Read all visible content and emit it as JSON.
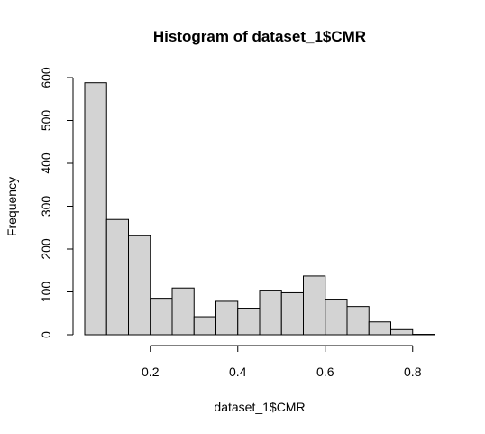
{
  "chart_data": {
    "type": "bar",
    "title": "Histogram of dataset_1$CMR",
    "xlabel": "dataset_1$CMR",
    "ylabel": "Frequency",
    "bar_color": "#d3d3d3",
    "bins": [
      {
        "from": 0.05,
        "to": 0.1,
        "count": 588
      },
      {
        "from": 0.1,
        "to": 0.15,
        "count": 269
      },
      {
        "from": 0.15,
        "to": 0.2,
        "count": 231
      },
      {
        "from": 0.2,
        "to": 0.25,
        "count": 85
      },
      {
        "from": 0.25,
        "to": 0.3,
        "count": 109
      },
      {
        "from": 0.3,
        "to": 0.35,
        "count": 42
      },
      {
        "from": 0.35,
        "to": 0.4,
        "count": 78
      },
      {
        "from": 0.4,
        "to": 0.45,
        "count": 62
      },
      {
        "from": 0.45,
        "to": 0.5,
        "count": 104
      },
      {
        "from": 0.5,
        "to": 0.55,
        "count": 98
      },
      {
        "from": 0.55,
        "to": 0.6,
        "count": 137
      },
      {
        "from": 0.6,
        "to": 0.65,
        "count": 83
      },
      {
        "from": 0.65,
        "to": 0.7,
        "count": 66
      },
      {
        "from": 0.7,
        "to": 0.75,
        "count": 30
      },
      {
        "from": 0.75,
        "to": 0.8,
        "count": 12
      },
      {
        "from": 0.8,
        "to": 0.85,
        "count": 1
      }
    ],
    "xlim": [
      0.05,
      0.85
    ],
    "ylim": [
      0,
      600
    ],
    "x_ticks": [
      0.2,
      0.4,
      0.6,
      0.8
    ],
    "x_tick_labels": [
      "0.2",
      "0.4",
      "0.6",
      "0.8"
    ],
    "y_ticks": [
      0,
      100,
      200,
      300,
      400,
      500,
      600
    ],
    "y_tick_labels": [
      "0",
      "100",
      "200",
      "300",
      "400",
      "500",
      "600"
    ],
    "grid": false,
    "legend": false
  }
}
